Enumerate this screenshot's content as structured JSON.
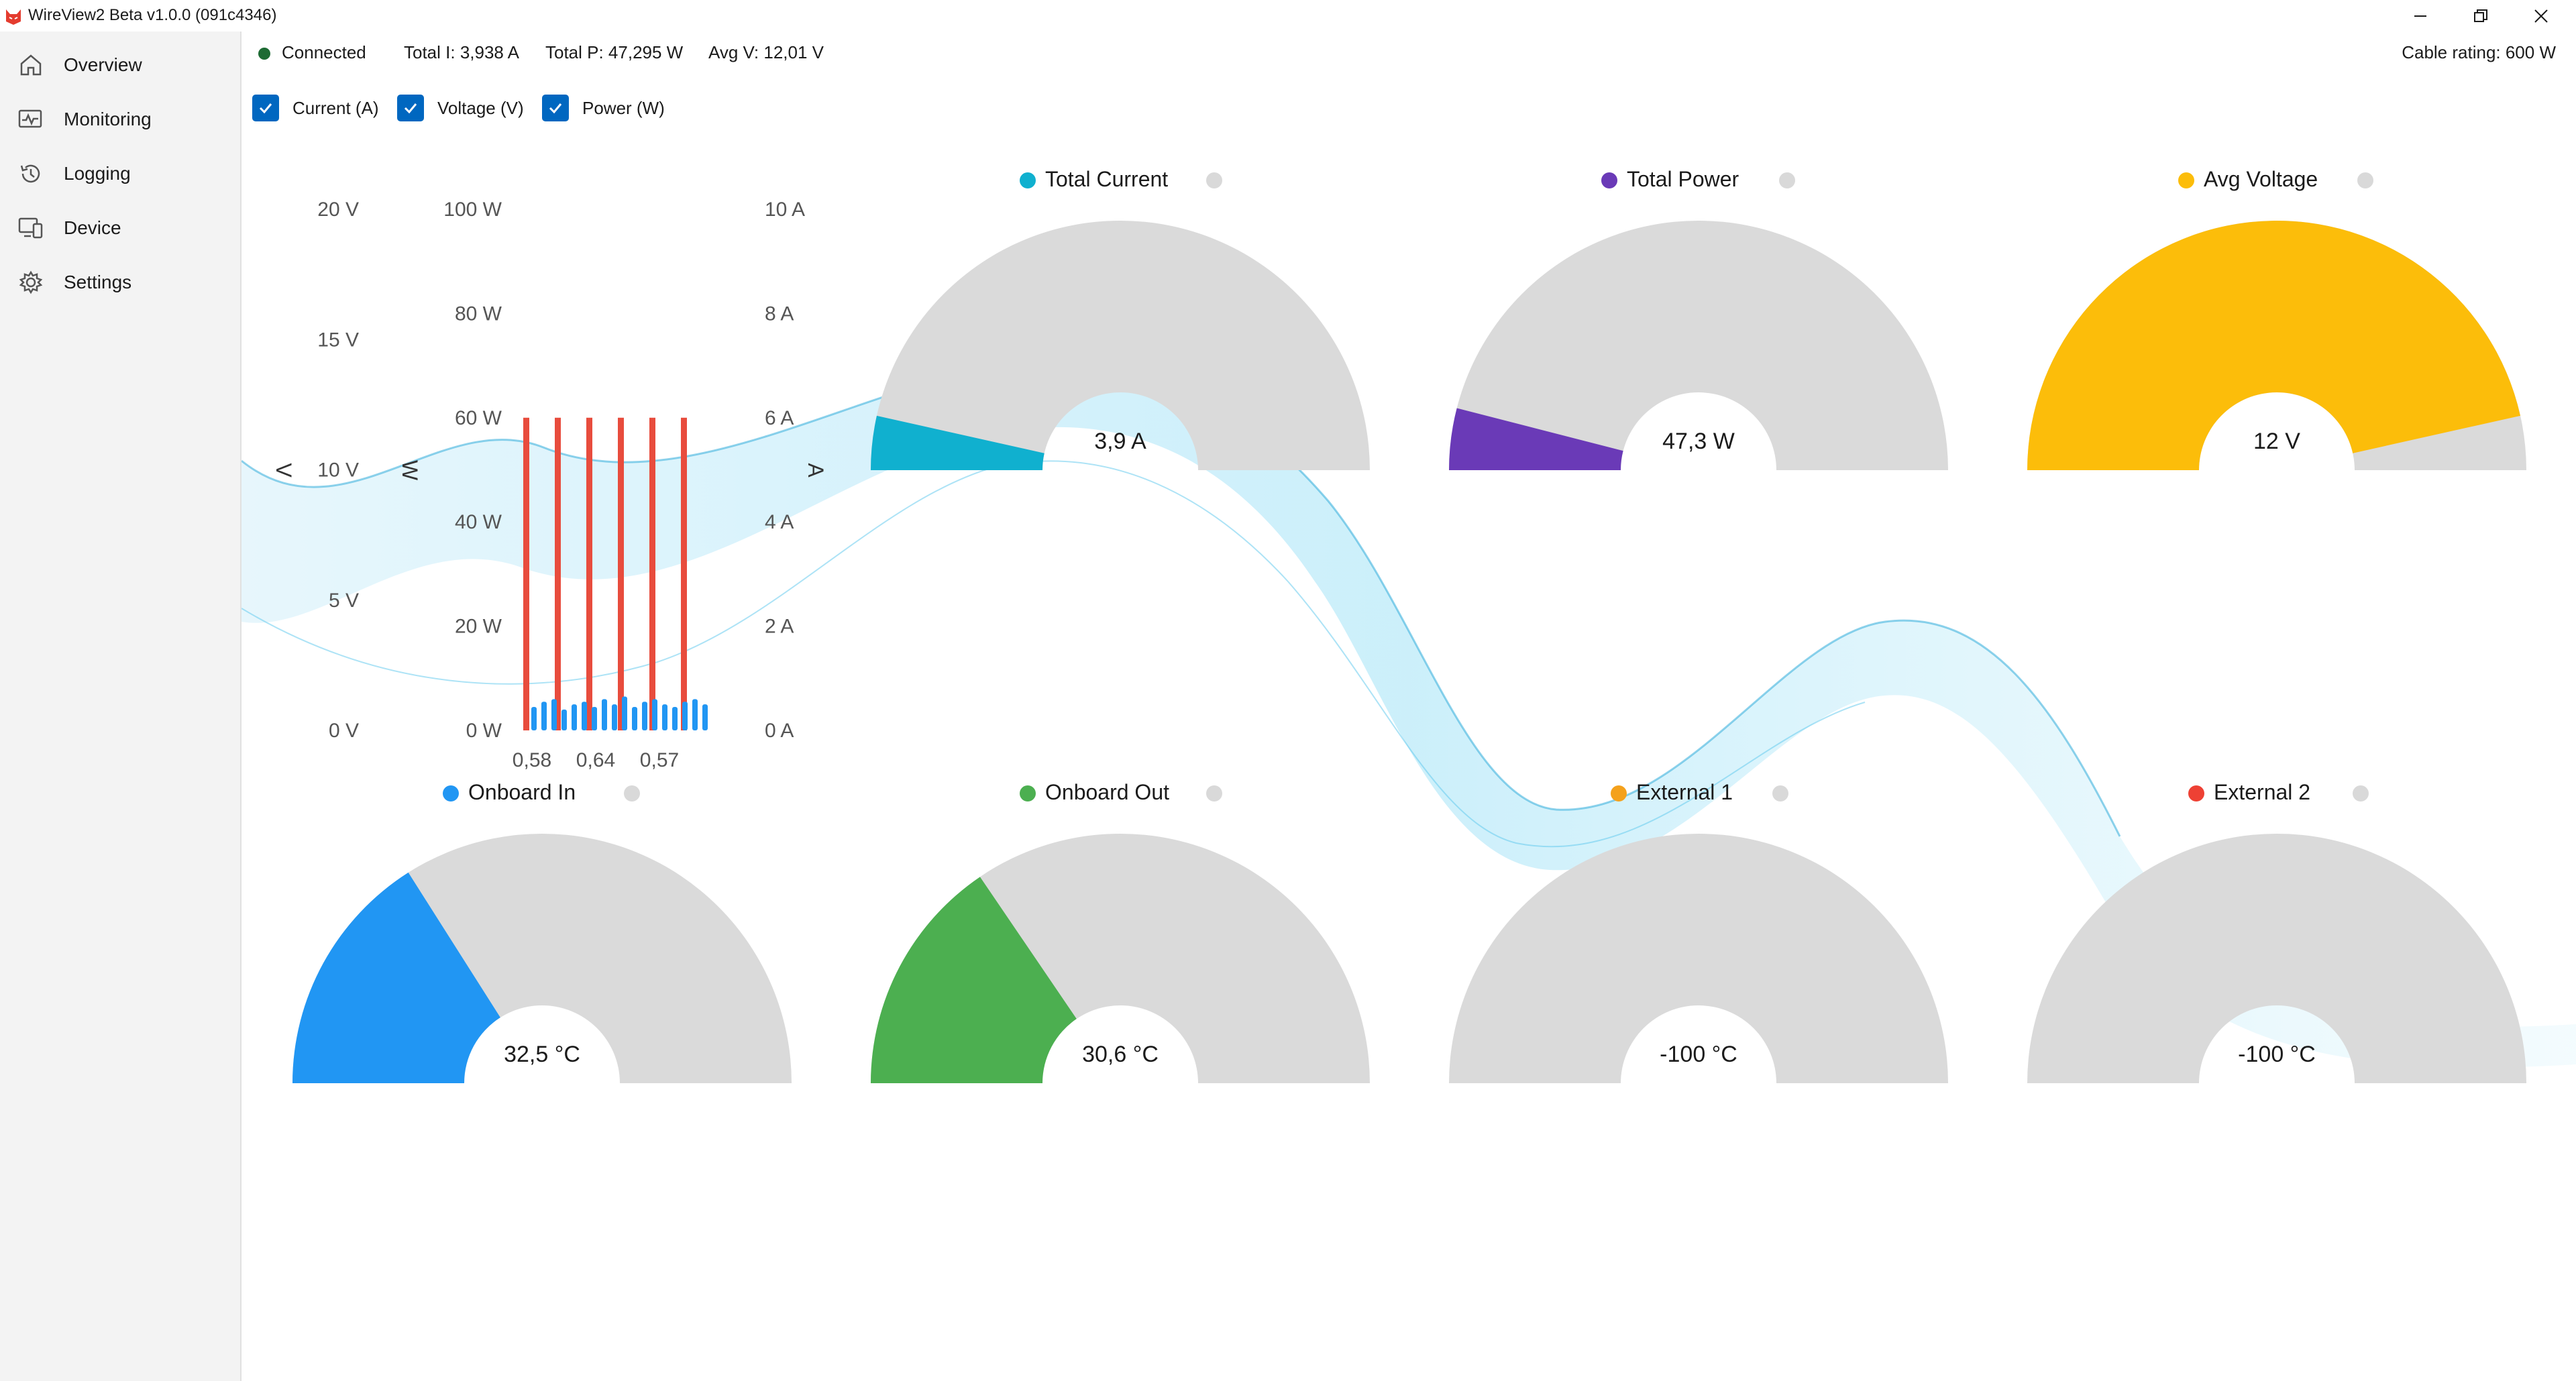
{
  "window": {
    "title": "WireView2 Beta v1.0.0 (091c4346)",
    "minimize_icon": "minimize-icon",
    "maximize_icon": "restore-icon",
    "close_icon": "close-icon"
  },
  "sidebar": {
    "items": [
      {
        "label": "Overview",
        "icon": "home-icon"
      },
      {
        "label": "Monitoring",
        "icon": "monitoring-icon"
      },
      {
        "label": "Logging",
        "icon": "history-icon"
      },
      {
        "label": "Device",
        "icon": "device-icon"
      },
      {
        "label": "Settings",
        "icon": "gear-icon"
      }
    ]
  },
  "status": {
    "connection": "Connected",
    "connection_color": "#1e6b34",
    "total_current": "Total I: 3,938 A",
    "total_power": "Total P: 47,295 W",
    "avg_voltage": "Avg V: 12,01 V",
    "cable_rating": "Cable rating: 600 W"
  },
  "toggles": [
    {
      "label": "Current (A)",
      "checked": true
    },
    {
      "label": "Voltage (V)",
      "checked": true
    },
    {
      "label": "Power (W)",
      "checked": true
    }
  ],
  "chart_data": {
    "type": "bar",
    "axes": {
      "voltage": {
        "label": "V",
        "ticks": [
          "0 V",
          "5 V",
          "10 V",
          "15 V",
          "20 V"
        ],
        "range": [
          0,
          20
        ]
      },
      "power": {
        "label": "W",
        "ticks": [
          "0 W",
          "20 W",
          "40 W",
          "60 W",
          "80 W",
          "100 W"
        ],
        "range": [
          0,
          100
        ]
      },
      "current": {
        "label": "A",
        "ticks": [
          "0 A",
          "2 A",
          "4 A",
          "6 A",
          "8 A",
          "10 A"
        ],
        "range": [
          0,
          10
        ]
      }
    },
    "x_ticks": [
      "0,58",
      "0,64",
      "0,57"
    ],
    "series": [
      {
        "axis": "voltage",
        "color": "#e84c3d",
        "values": [
          12,
          12,
          12,
          12,
          12,
          12
        ]
      },
      {
        "axis": "current",
        "color": "#2196f3",
        "values": [
          0.45,
          0.55,
          0.6,
          0.4,
          0.5,
          0.55,
          0.45,
          0.6,
          0.5,
          0.65,
          0.45,
          0.55,
          0.6,
          0.5,
          0.45,
          0.55,
          0.6,
          0.5
        ]
      }
    ]
  },
  "gauges": [
    {
      "title": "Total Current",
      "value": "3,9 A",
      "fraction": 0.07,
      "color": "#10b0cf"
    },
    {
      "title": "Total Power",
      "value": "47,3 W",
      "fraction": 0.08,
      "color": "#6a3ab7"
    },
    {
      "title": "Avg Voltage",
      "value": "12 V",
      "fraction": 0.93,
      "color": "#fcbd0a"
    },
    {
      "title": "Onboard In",
      "value": "32,5 °C",
      "fraction": 0.32,
      "color": "#2196f3"
    },
    {
      "title": "Onboard Out",
      "value": "30,6 °C",
      "fraction": 0.31,
      "color": "#4caf50"
    },
    {
      "title": "External 1",
      "value": "-100 °C",
      "fraction": 0,
      "color": "#f4a11c"
    },
    {
      "title": "External 2",
      "value": "-100 °C",
      "fraction": 0,
      "color": "#ee4134"
    }
  ]
}
